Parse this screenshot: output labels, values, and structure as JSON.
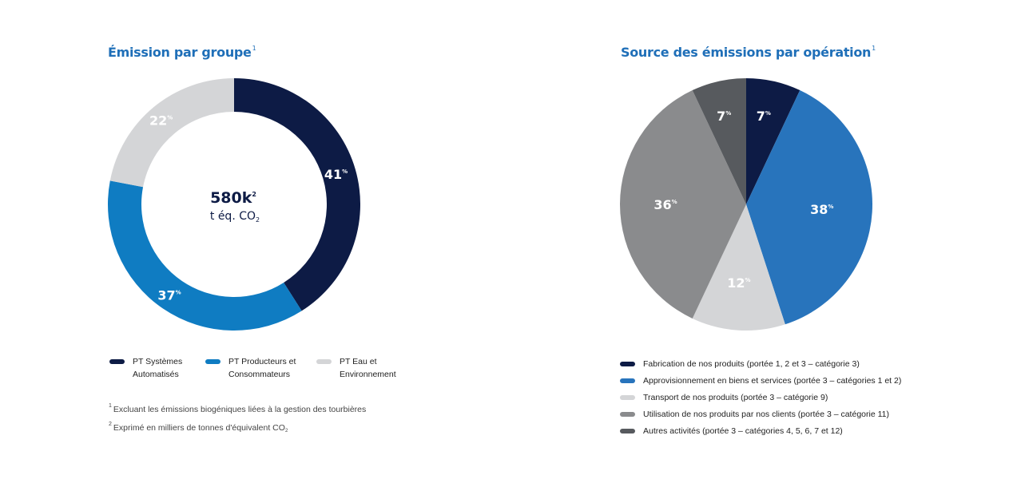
{
  "colors": {
    "navy": "#0d1b45",
    "blue_mid": "#0f7cc2",
    "blue_light": "#2874bc",
    "light_gray": "#d4d5d7",
    "gray_mid": "#8a8b8d",
    "gray_dark": "#575a5e",
    "title_blue": "#1f6fb8"
  },
  "left": {
    "title": "Émission par groupe",
    "title_note": "1",
    "center_value": "580k",
    "center_value_note": "2",
    "center_unit": "t éq. CO",
    "center_unit_sub": "2",
    "percent_symbol": "%",
    "legend": [
      {
        "label": "PT Systèmes\nAutomatisés",
        "color": "#0d1b45"
      },
      {
        "label": "PT Producteurs et\nConsommateurs",
        "color": "#0f7cc2"
      },
      {
        "label": "PT Eau et\nEnvironnement",
        "color": "#d4d5d7"
      }
    ],
    "footnotes": [
      {
        "mark": "1",
        "text": "Excluant les émissions biogéniques liées à la gestion des tourbières"
      },
      {
        "mark": "2",
        "text": "Exprimé en milliers de tonnes d'équivalent CO",
        "sub": "2"
      }
    ]
  },
  "right": {
    "title": "Source des émissions par opération",
    "title_note": "1",
    "percent_symbol": "%",
    "legend": [
      {
        "label": "Fabrication de nos produits (portée 1, 2 et 3 – catégorie 3)",
        "color": "#0d1b45"
      },
      {
        "label": "Approvisionnement en biens et services (portée 3 – catégories 1 et 2)",
        "color": "#2874bc"
      },
      {
        "label": "Transport de nos produits (portée 3 – catégorie 9)",
        "color": "#d4d5d7"
      },
      {
        "label": "Utilisation de nos produits par nos clients (portée 3 – catégorie 11)",
        "color": "#8a8b8d"
      },
      {
        "label": "Autres activités (portée 3 – catégories 4, 5, 6, 7 et 12)",
        "color": "#575a5e"
      }
    ]
  },
  "chart_data": [
    {
      "type": "pie",
      "variant": "donut",
      "title": "Émission par groupe",
      "total_label": "580k t éq. CO2",
      "categories": [
        "PT Systèmes Automatisés",
        "PT Producteurs et Consommateurs",
        "PT Eau et Environnement"
      ],
      "values": [
        41,
        37,
        22
      ],
      "colors": [
        "#0d1b45",
        "#0f7cc2",
        "#d4d5d7"
      ],
      "start_angle_deg": 0,
      "direction": "clockwise",
      "legend_position": "bottom"
    },
    {
      "type": "pie",
      "title": "Source des émissions par opération",
      "categories": [
        "Fabrication de nos produits (portée 1, 2 et 3 – catégorie 3)",
        "Approvisionnement en biens et services (portée 3 – catégories 1 et 2)",
        "Transport de nos produits (portée 3 – catégorie 9)",
        "Utilisation de nos produits par nos clients (portée 3 – catégorie 11)",
        "Autres activités (portée 3 – catégories 4, 5, 6, 7 et 12)"
      ],
      "values": [
        7,
        38,
        12,
        36,
        7
      ],
      "colors": [
        "#0d1b45",
        "#2874bc",
        "#d4d5d7",
        "#8a8b8d",
        "#575a5e"
      ],
      "start_angle_deg": 0,
      "direction": "clockwise",
      "legend_position": "bottom"
    }
  ]
}
